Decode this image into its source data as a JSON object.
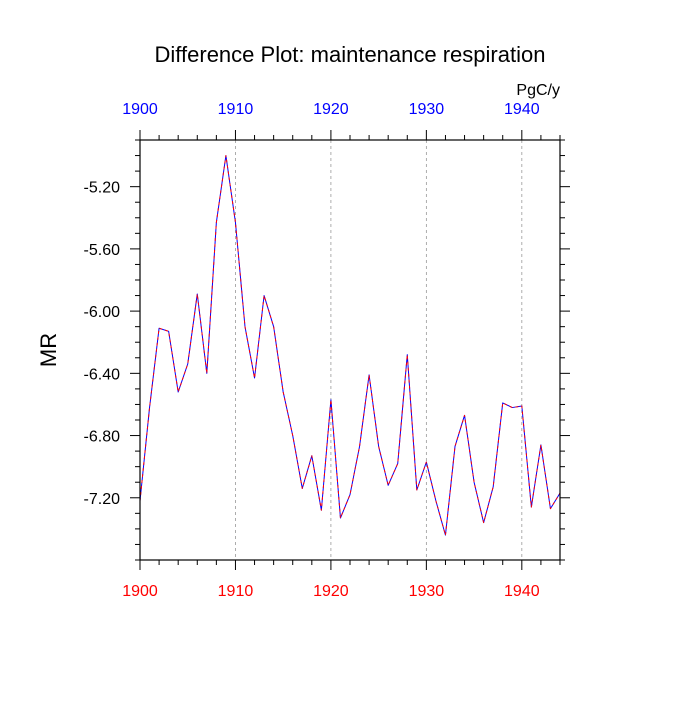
{
  "chart_data": {
    "type": "line",
    "title": "Difference Plot: maintenance respiration",
    "units_label": "PgC/y",
    "ylabel": "MR",
    "xlabel": "",
    "xlim": [
      1900,
      1944
    ],
    "ylim": [
      -7.6,
      -4.9
    ],
    "x_ticks_major": [
      1900,
      1910,
      1920,
      1930,
      1940
    ],
    "x_tick_labels_top": [
      "1900",
      "1910",
      "1920",
      "1930",
      "1940"
    ],
    "x_tick_labels_bottom": [
      "1900",
      "1910",
      "1920",
      "1930",
      "1940"
    ],
    "y_ticks_major": [
      -5.2,
      -5.6,
      -6.0,
      -6.4,
      -6.8,
      -7.2
    ],
    "y_tick_labels": [
      "-5.20",
      "-5.60",
      "-6.00",
      "-6.40",
      "-6.80",
      "-7.20"
    ],
    "grid": "vertical dashed at major x ticks",
    "colors": {
      "top_tick_labels": "#0000ff",
      "bottom_tick_labels": "#ff0000",
      "series_solid": "#0000ff",
      "series_dash": "#ff0000",
      "grid": "#999999"
    },
    "x": [
      1900,
      1901,
      1902,
      1903,
      1904,
      1905,
      1906,
      1907,
      1908,
      1909,
      1910,
      1911,
      1912,
      1913,
      1914,
      1915,
      1916,
      1917,
      1918,
      1919,
      1920,
      1921,
      1922,
      1923,
      1924,
      1925,
      1926,
      1927,
      1928,
      1929,
      1930,
      1931,
      1932,
      1933,
      1934,
      1935,
      1936,
      1937,
      1938,
      1939,
      1940,
      1941,
      1942,
      1943,
      1944
    ],
    "series": [
      {
        "values": [
          -7.22,
          -6.62,
          -6.11,
          -6.13,
          -6.52,
          -6.34,
          -5.89,
          -6.4,
          -5.43,
          -5.0,
          -5.43,
          -6.1,
          -6.43,
          -5.9,
          -6.1,
          -6.52,
          -6.8,
          -7.14,
          -6.93,
          -7.28,
          -6.57,
          -7.33,
          -7.18,
          -6.87,
          -6.41,
          -6.87,
          -7.12,
          -6.98,
          -6.28,
          -7.15,
          -6.97,
          -7.22,
          -7.44,
          -6.87,
          -6.67,
          -7.1,
          -7.36,
          -7.13,
          -6.59,
          -6.62,
          -6.61,
          -7.26,
          -6.86,
          -7.27,
          -7.17
        ]
      }
    ]
  }
}
